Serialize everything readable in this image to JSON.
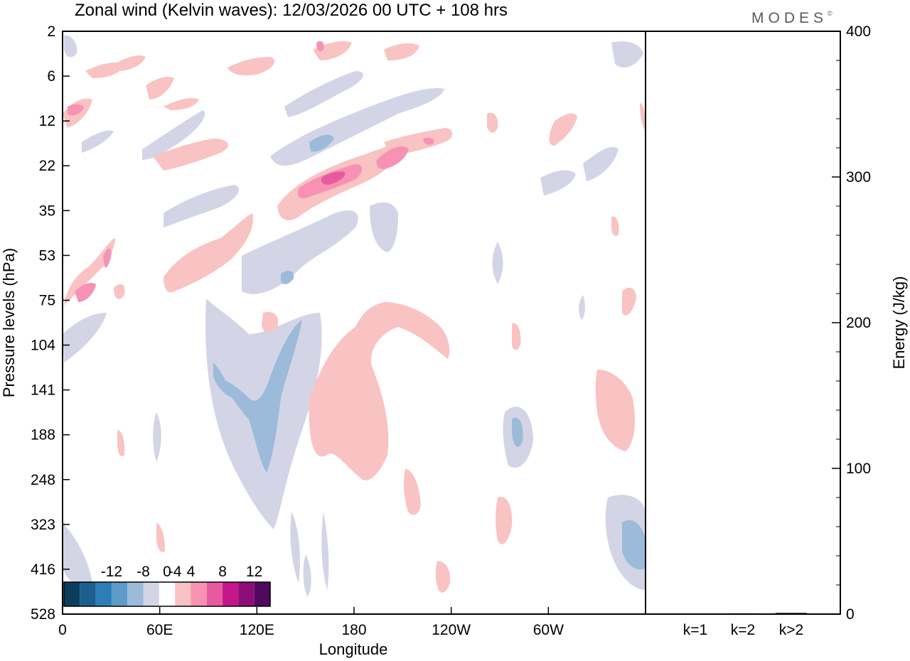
{
  "chart_data": [
    {
      "type": "heatmap",
      "title": "Zonal wind (Kelvin waves):  12/03/2026  00 UTC  + 108 hrs",
      "xlabel": "Longitude",
      "ylabel": "Pressure levels (hPa)",
      "x_ticks": [
        "0",
        "60E",
        "120E",
        "180",
        "120W",
        "60W"
      ],
      "x_tick_values": [
        0,
        60,
        120,
        180,
        240,
        300
      ],
      "xlim": [
        0,
        360
      ],
      "y_ticks": [
        "2",
        "6",
        "12",
        "22",
        "35",
        "53",
        "75",
        "104",
        "141",
        "188",
        "248",
        "323",
        "416",
        "528"
      ],
      "colorbar": {
        "labels": [
          "-12",
          "-8",
          "-4",
          "0",
          "4",
          "8",
          "12"
        ],
        "label_values": [
          -12,
          -8,
          -4,
          0,
          4,
          8,
          12
        ],
        "levels": [
          -16,
          -14,
          -12,
          -10,
          -8,
          -6,
          -4,
          -2,
          2,
          4,
          6,
          8,
          10,
          12,
          14,
          16
        ],
        "colors": [
          "#0d3d5c",
          "#1c5f8e",
          "#2c7db8",
          "#5d9bc9",
          "#9cbada",
          "#d3d5e6",
          "#ffffff",
          "#f8c3c2",
          "#f792b4",
          "#e85aa0",
          "#c4168a",
          "#8c0d78",
          "#4f0a60"
        ]
      },
      "regions": [
        {
          "label": "positive",
          "level": 4,
          "lon_range": [
            130,
            190
          ],
          "p_range": [
            120,
            250
          ],
          "value": 3
        },
        {
          "label": "positive",
          "level": 8,
          "lon_range": [
            155,
            195
          ],
          "p_range": [
            20,
            30
          ],
          "value": 8
        },
        {
          "label": "negative",
          "level": -4,
          "lon_range": [
            95,
            120
          ],
          "p_range": [
            120,
            300
          ],
          "value": -6
        },
        {
          "label": "negative",
          "level": -4,
          "lon_range": [
            280,
            290
          ],
          "p_range": [
            160,
            230
          ],
          "value": -6
        },
        {
          "label": "negative",
          "level": -4,
          "lon_range": [
            345,
            360
          ],
          "p_range": [
            330,
            420
          ],
          "value": -6
        }
      ]
    },
    {
      "type": "bar",
      "ylabel": "Energy (J/kg)",
      "categories": [
        "k=1",
        "k=2",
        "k>2"
      ],
      "values": [
        0.3,
        0.5,
        0.8
      ],
      "ylim": [
        0,
        400
      ],
      "y_ticks": [
        "0",
        "100",
        "200",
        "300",
        "400"
      ]
    }
  ],
  "brand": {
    "name": "MODES",
    "mark": "©"
  },
  "colors": {
    "neg_light": "#d3d5e6",
    "neg_mid": "#9cbada",
    "neg_dark": "#5d9bc9",
    "pos_light": "#f8c3c2",
    "pos_mid": "#f792b4",
    "pos_dark": "#e85aa0"
  }
}
